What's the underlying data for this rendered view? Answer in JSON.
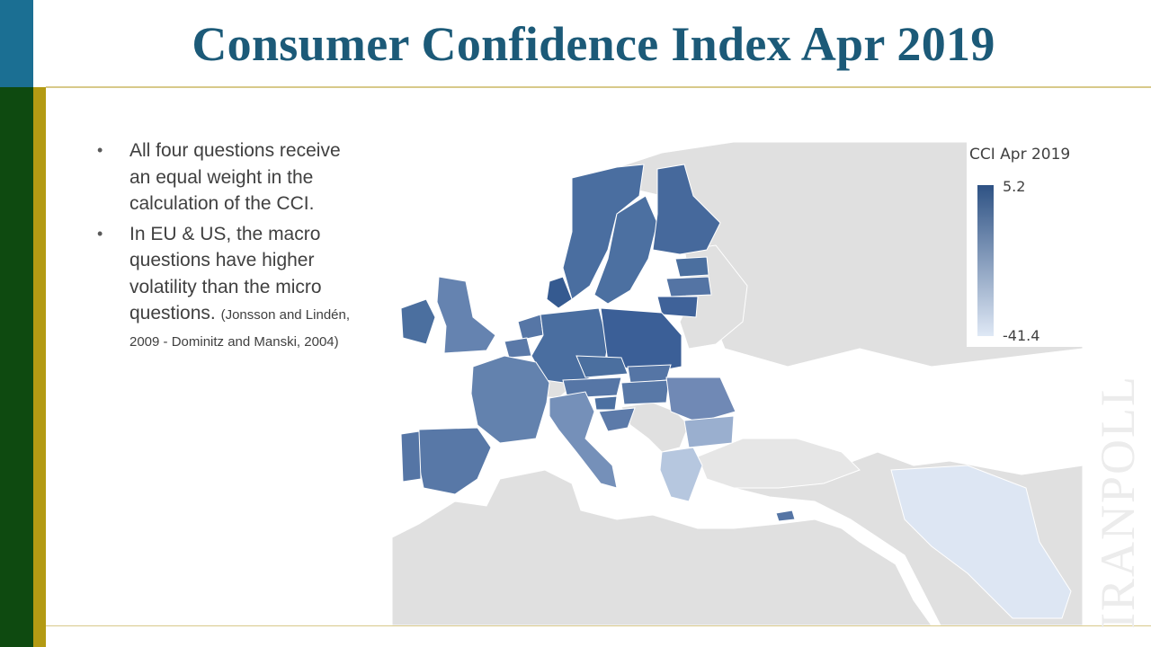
{
  "slide": {
    "title": "Consumer Confidence Index Apr 2019",
    "bullets": [
      {
        "text": "All four questions receive an equal weight in the calculation of the CCI."
      },
      {
        "text": "In EU & US, the macro questions have higher volatility than the micro questions. ",
        "citation": "(Jonsson and Lindén, 2009 - Dominitz and Manski, 2004)"
      }
    ],
    "watermark": "IRANPOLL"
  },
  "colors": {
    "title": "#1c5a78",
    "scale_high": "#2e5284",
    "scale_low": "#dfe8f5",
    "no_data": "#e0e0e0"
  },
  "chart_data": {
    "type": "choropleth",
    "legend": {
      "title": "CCI Apr 2019",
      "max_label": "5.2",
      "min_label": "-41.4",
      "max": 5.2,
      "min": -41.4
    },
    "regions": [
      {
        "name": "Denmark",
        "value": 4.5
      },
      {
        "name": "Lithuania",
        "value": 3.5
      },
      {
        "name": "Poland",
        "value": 2.5
      },
      {
        "name": "Finland",
        "value": 0.5
      },
      {
        "name": "Norway",
        "value": -1.0
      },
      {
        "name": "Sweden",
        "value": -1.5
      },
      {
        "name": "Ireland",
        "value": -1.0
      },
      {
        "name": "Germany",
        "value": -3.0
      },
      {
        "name": "Czechia",
        "value": -3.5
      },
      {
        "name": "Estonia",
        "value": -4.0
      },
      {
        "name": "Latvia",
        "value": -6.0
      },
      {
        "name": "Slovenia",
        "value": -4.0
      },
      {
        "name": "Netherlands",
        "value": -5.0
      },
      {
        "name": "Austria",
        "value": -5.0
      },
      {
        "name": "Belgium",
        "value": -7.0
      },
      {
        "name": "Slovakia",
        "value": -7.0
      },
      {
        "name": "Hungary",
        "value": -7.0
      },
      {
        "name": "Portugal",
        "value": -8.0
      },
      {
        "name": "Spain",
        "value": -9.0
      },
      {
        "name": "Cyprus",
        "value": -8.0
      },
      {
        "name": "Croatia",
        "value": -9.0
      },
      {
        "name": "United Kingdom",
        "value": -12.0
      },
      {
        "name": "France",
        "value": -12.0
      },
      {
        "name": "Romania",
        "value": -13.0
      },
      {
        "name": "Italy",
        "value": -15.0
      },
      {
        "name": "Bulgaria",
        "value": -23.0
      },
      {
        "name": "Greece",
        "value": -29.0
      },
      {
        "name": "Iran",
        "value": -41.4
      }
    ]
  }
}
